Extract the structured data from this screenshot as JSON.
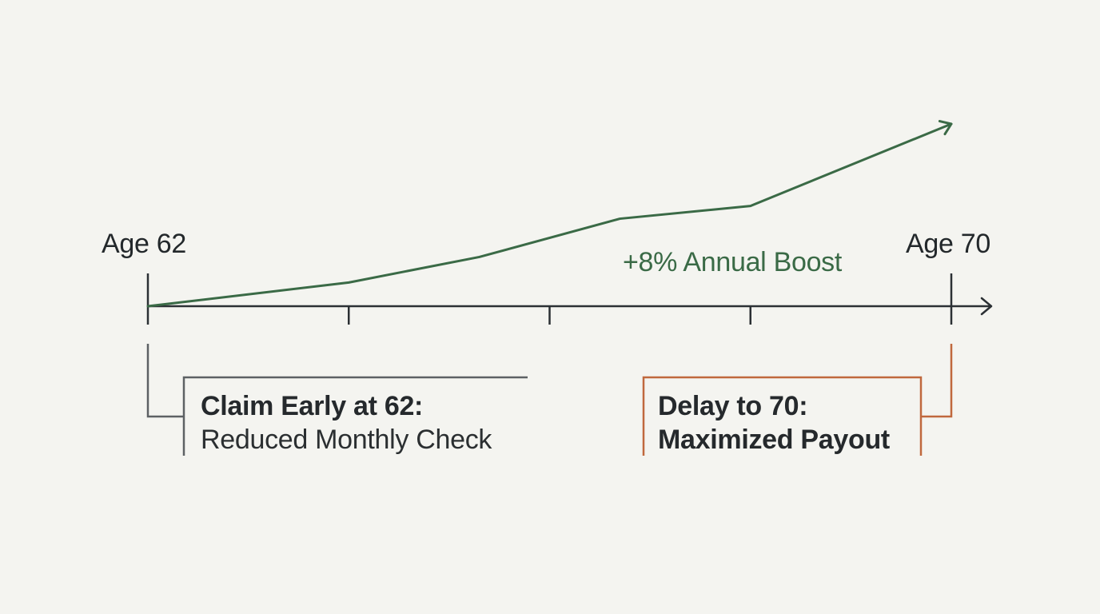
{
  "colors": {
    "background": "#f4f4f0",
    "axis": "#2b3034",
    "growth_line": "#3a6a46",
    "early_bracket": "#5d6164",
    "delay_bracket": "#c0683d",
    "text": "#24282b"
  },
  "labels": {
    "start_age": "Age 62",
    "end_age": "Age 70",
    "boost": "+8% Annual Boost"
  },
  "callouts": {
    "early": {
      "title": "Claim Early at 62:",
      "subtitle": "Reduced Monthly Check"
    },
    "delay": {
      "title": "Delay to 70:",
      "subtitle": "Maximized Payout"
    }
  },
  "timeline": {
    "start_value": 62,
    "end_value": 70,
    "tick_values": [
      62,
      64,
      66,
      68,
      70
    ]
  },
  "growth_curve": {
    "description_icon": "arrow-right-icon",
    "points": [
      {
        "age": 62,
        "level": 0
      },
      {
        "age": 64,
        "level": 0.13
      },
      {
        "age": 65.3,
        "level": 0.27
      },
      {
        "age": 66.7,
        "level": 0.48
      },
      {
        "age": 68,
        "level": 0.55
      },
      {
        "age": 70,
        "level": 1.0
      }
    ]
  }
}
